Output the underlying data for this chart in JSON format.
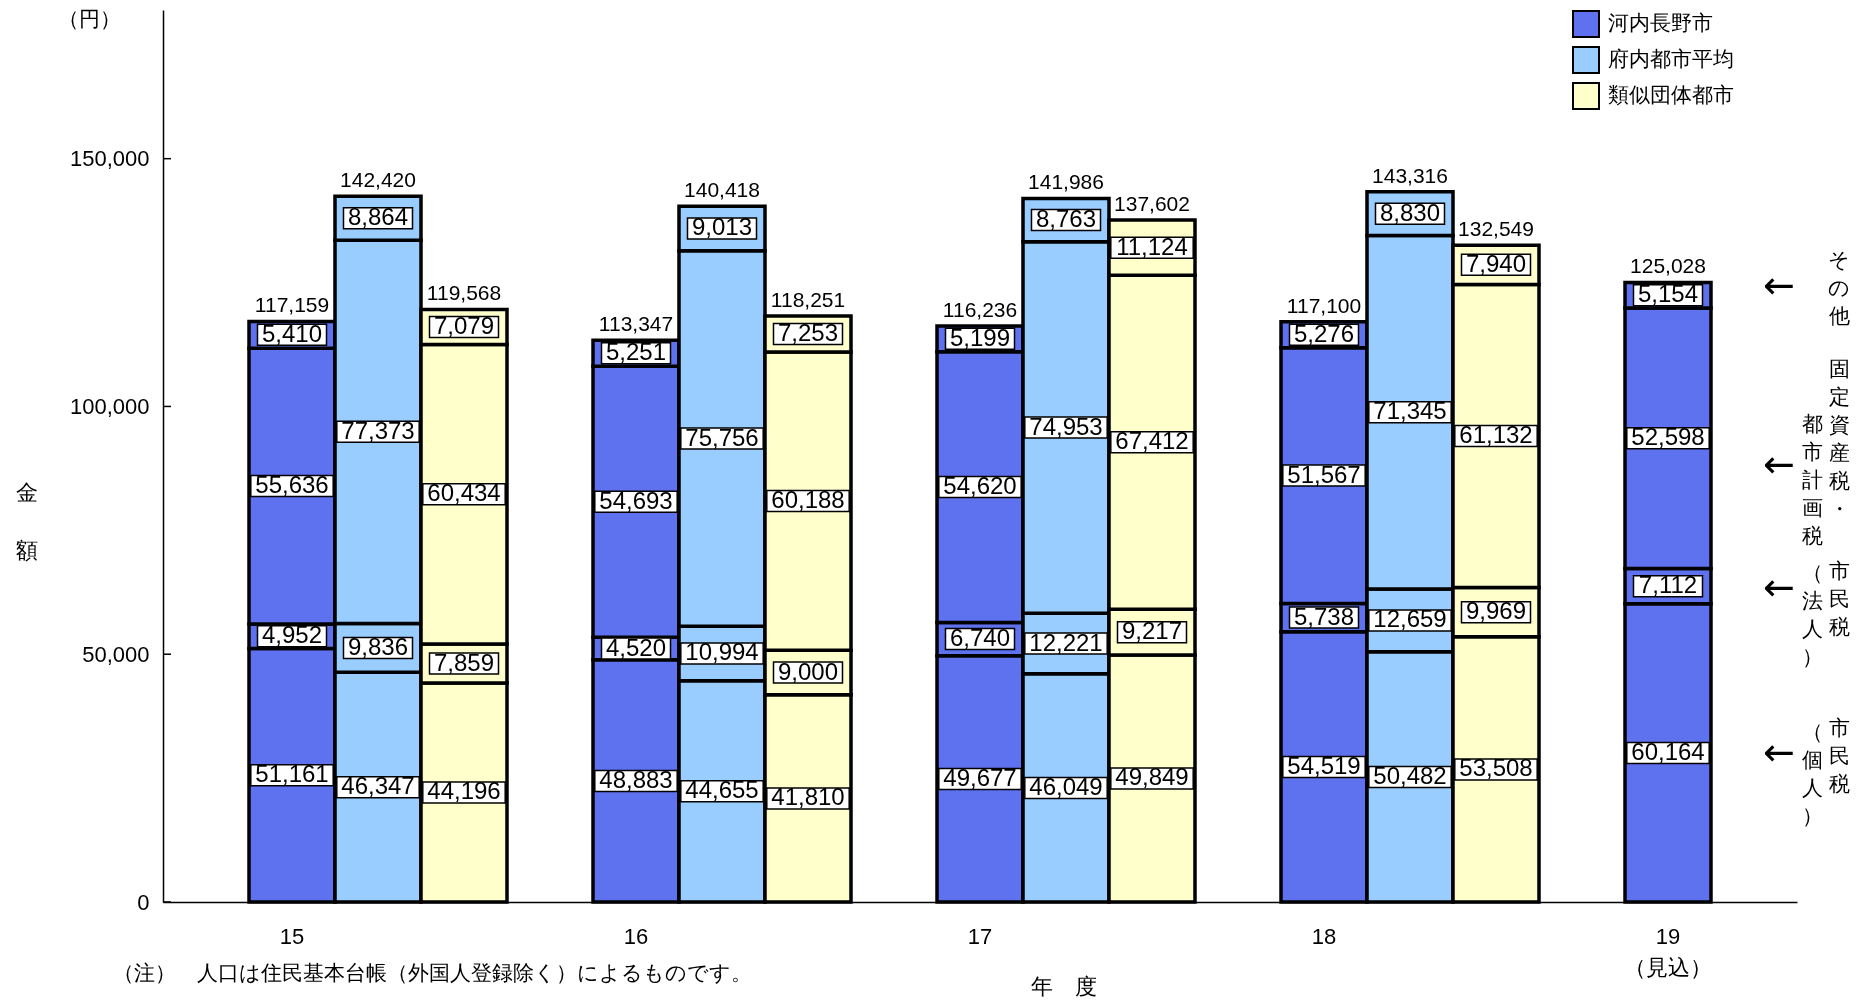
{
  "chart_data": {
    "type": "bar",
    "stacked": true,
    "xlabel": "年　度",
    "ylabel": "金額",
    "categories": [
      "15",
      null,
      null,
      null,
      "16",
      null,
      null,
      null,
      "17",
      null,
      null,
      null,
      "18",
      null,
      null,
      null,
      "19\n（見込）"
    ],
    "series": [
      {
        "name": "河内長野市",
        "color": "#5e72f0",
        "values": [
          51161,
          null,
          null,
          null,
          48883,
          null,
          null,
          null,
          49677,
          null,
          null,
          null,
          54519,
          null,
          null,
          null,
          60164
        ],
        "value_labels": [
          "51,161",
          null,
          null,
          null,
          "48,883",
          null,
          null,
          null,
          "49,677",
          null,
          null,
          null,
          "54,519",
          null,
          null,
          null,
          "60,164"
        ]
      },
      {
        "color": "#5e72f0",
        "values": [
          4952,
          null,
          null,
          null,
          4520,
          null,
          null,
          null,
          6740,
          null,
          null,
          null,
          5738,
          null,
          null,
          null,
          7112
        ],
        "value_labels": [
          "4,952",
          null,
          null,
          null,
          "4,520",
          null,
          null,
          null,
          "6,740",
          null,
          null,
          null,
          "5,738",
          null,
          null,
          null,
          "7,112"
        ]
      },
      {
        "color": "#5e72f0",
        "values": [
          55636,
          null,
          null,
          null,
          54693,
          null,
          null,
          null,
          54620,
          null,
          null,
          null,
          51567,
          null,
          null,
          null,
          52598
        ],
        "value_labels": [
          "55,636",
          null,
          null,
          null,
          "54,693",
          null,
          null,
          null,
          "54,620",
          null,
          null,
          null,
          "51,567",
          null,
          null,
          null,
          "52,598"
        ]
      },
      {
        "color": "#5e72f0",
        "values": [
          5410,
          null,
          null,
          null,
          5251,
          null,
          null,
          null,
          5199,
          null,
          null,
          null,
          5276,
          null,
          null,
          null,
          5154
        ],
        "value_labels": [
          "5,410",
          null,
          null,
          null,
          "5,251",
          null,
          null,
          null,
          "5,199",
          null,
          null,
          null,
          "5,276",
          null,
          null,
          null,
          "5,154"
        ]
      },
      {
        "name": "府内都市平均",
        "color": "#99ccff",
        "values": [
          null,
          46347,
          null,
          null,
          null,
          44655,
          null,
          null,
          null,
          46049,
          null,
          null,
          null,
          50482,
          null,
          null,
          null
        ],
        "value_labels": [
          null,
          "46,347",
          null,
          null,
          null,
          "44,655",
          null,
          null,
          null,
          "46,049",
          null,
          null,
          null,
          "50,482",
          null,
          null,
          null
        ]
      },
      {
        "color": "#99ccff",
        "values": [
          null,
          9836,
          null,
          null,
          null,
          10994,
          null,
          null,
          null,
          12221,
          null,
          null,
          null,
          12659,
          null,
          null,
          null
        ],
        "value_labels": [
          null,
          "9,836",
          null,
          null,
          null,
          "10,994",
          null,
          null,
          null,
          "12,221",
          null,
          null,
          null,
          "12,659",
          null,
          null,
          null
        ]
      },
      {
        "color": "#99ccff",
        "values": [
          null,
          77373,
          null,
          null,
          null,
          75756,
          null,
          null,
          null,
          74953,
          null,
          null,
          null,
          71345,
          null,
          null,
          null
        ],
        "value_labels": [
          null,
          "77,373",
          null,
          null,
          null,
          "75,756",
          null,
          null,
          null,
          "74,953",
          null,
          null,
          null,
          "71,345",
          null,
          null,
          null
        ]
      },
      {
        "color": "#99ccff",
        "values": [
          null,
          8864,
          null,
          null,
          null,
          9013,
          null,
          null,
          null,
          8763,
          null,
          null,
          null,
          8830,
          null,
          null,
          null
        ],
        "value_labels": [
          null,
          "8,864",
          null,
          null,
          null,
          "9,013",
          null,
          null,
          null,
          "8,763",
          null,
          null,
          null,
          "8,830",
          null,
          null,
          null
        ]
      },
      {
        "name": "類似団体都市",
        "color": "#ffffcc",
        "values": [
          null,
          null,
          44196,
          null,
          null,
          null,
          41810,
          null,
          null,
          null,
          49849,
          null,
          null,
          null,
          53508,
          null,
          null
        ],
        "value_labels": [
          null,
          null,
          "44,196",
          null,
          null,
          null,
          "41,810",
          null,
          null,
          null,
          "49,849",
          null,
          null,
          null,
          "53,508",
          null,
          null
        ]
      },
      {
        "color": "#ffffcc",
        "values": [
          null,
          null,
          7859,
          null,
          null,
          null,
          9000,
          null,
          null,
          null,
          9217,
          null,
          null,
          null,
          9969,
          null,
          null
        ],
        "value_labels": [
          null,
          null,
          "7,859",
          null,
          null,
          null,
          "9,000",
          null,
          null,
          null,
          "9,217",
          null,
          null,
          null,
          "9,969",
          null,
          null
        ]
      },
      {
        "color": "#ffffcc",
        "values": [
          null,
          null,
          60434,
          null,
          null,
          null,
          60188,
          null,
          null,
          null,
          67412,
          null,
          null,
          null,
          61132,
          null,
          null
        ],
        "value_labels": [
          null,
          null,
          "60,434",
          null,
          null,
          null,
          "60,188",
          null,
          null,
          null,
          "67,412",
          null,
          null,
          null,
          "61,132",
          null,
          null
        ]
      },
      {
        "color": "#ffffcc",
        "values": [
          null,
          null,
          7079,
          null,
          null,
          null,
          7253,
          null,
          null,
          null,
          11124,
          null,
          null,
          null,
          7940,
          null,
          null
        ],
        "value_labels": [
          null,
          null,
          "7,079",
          null,
          null,
          null,
          "7,253",
          null,
          null,
          null,
          "11,124",
          null,
          null,
          null,
          "7,940",
          null,
          null
        ]
      }
    ],
    "totals": [
      "117,159",
      "142,420",
      "119,568",
      null,
      "113,347",
      "140,418",
      "118,251",
      null,
      "116,236",
      "141,986",
      "137,602",
      null,
      "117,100",
      "143,316",
      "132,549",
      null,
      "125,028"
    ],
    "ylim": [
      0,
      180000
    ],
    "yticks": [
      {
        "value": 0,
        "label": "0"
      },
      {
        "value": 50000,
        "label": "50,000"
      },
      {
        "value": 100000,
        "label": "100,000"
      },
      {
        "value": 150000,
        "label": "150,000"
      }
    ],
    "legend": "top right",
    "annotations": [
      "（円）",
      "（注）　人口は住民基本台帳（外国人登録除く）によるものです。",
      "←",
      "その他",
      "←",
      "固定資産税・",
      "都市計画税",
      "←",
      "市民税",
      "（法人）",
      "←",
      "市民税",
      "（個人）"
    ]
  }
}
